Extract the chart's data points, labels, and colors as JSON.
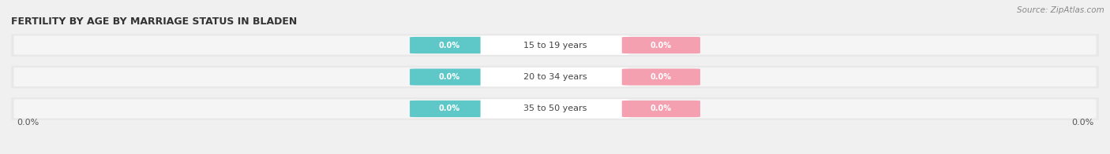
{
  "title": "FERTILITY BY AGE BY MARRIAGE STATUS IN BLADEN",
  "source": "Source: ZipAtlas.com",
  "categories": [
    "15 to 19 years",
    "20 to 34 years",
    "35 to 50 years"
  ],
  "married_values": [
    0.0,
    0.0,
    0.0
  ],
  "unmarried_values": [
    0.0,
    0.0,
    0.0
  ],
  "married_color": "#5ec8c8",
  "unmarried_color": "#f4a0b0",
  "title_fontsize": 9,
  "source_fontsize": 7.5,
  "label_fontsize": 8,
  "category_fontsize": 8,
  "value_label_fontsize": 7,
  "bg_color": "#f0f0f0",
  "bar_bg_color": "#e8e8e8",
  "bar_inner_color": "#f5f5f5",
  "axis_label_color": "#555555",
  "text_color_light": "#ffffff",
  "text_color_dark": "#444444"
}
